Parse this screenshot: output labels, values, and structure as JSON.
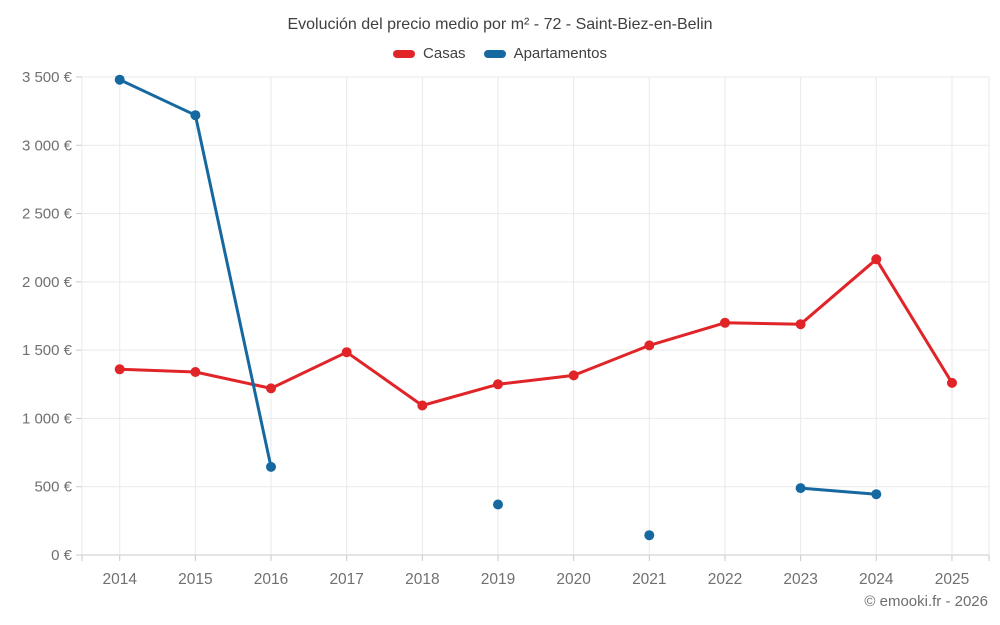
{
  "header": {
    "title": "Evolución del precio medio por m² - 72 - Saint-Biez-en-Belin"
  },
  "footer": {
    "attribution": "© emooki.fr - 2026"
  },
  "chart_data": {
    "type": "line",
    "title": "Evolución del precio medio por m² - 72 - Saint-Biez-en-Belin",
    "x": [
      2014,
      2015,
      2016,
      2017,
      2018,
      2019,
      2020,
      2021,
      2022,
      2023,
      2024,
      2025
    ],
    "series": [
      {
        "name": "Casas",
        "color": "#e02428",
        "values": [
          1360,
          1340,
          1220,
          1485,
          1095,
          1250,
          1315,
          1535,
          1700,
          1690,
          2165,
          1260
        ]
      },
      {
        "name": "Apartamentos",
        "color": "#1669a0",
        "values": [
          3480,
          3220,
          645,
          null,
          null,
          370,
          null,
          145,
          null,
          490,
          445,
          null
        ]
      }
    ],
    "ylim": [
      0,
      3500
    ],
    "ytick_step": 500,
    "ytick_labels": [
      "0 €",
      "500 €",
      "1 000 €",
      "1 500 €",
      "2 000 €",
      "2 500 €",
      "3 000 €",
      "3 500 €"
    ],
    "currency_suffix": "€",
    "grid": true,
    "legend_position": "top",
    "colors": {
      "grid_line": "#e9e9e9",
      "axis_line": "#c9c9c9",
      "tick_label": "#707070",
      "title_text": "#404040"
    }
  }
}
